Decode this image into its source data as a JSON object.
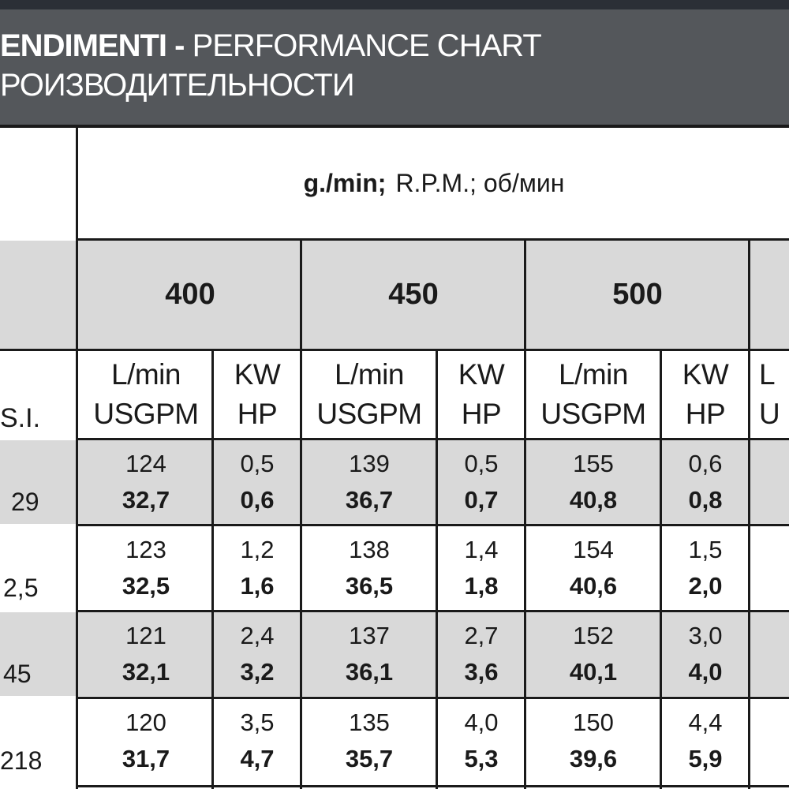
{
  "header": {
    "line1_bold": "ENDIMENTI -",
    "line1_light": "PERFORMANCE CHART",
    "line2": "РОИЗВОДИТЕЛЬНОСТИ"
  },
  "rpm_label": {
    "bold": "g./min;",
    "rest": "R.P.M.; об/мин"
  },
  "speeds": [
    "400",
    "450",
    "500"
  ],
  "units": {
    "flow_top": "L/min",
    "flow_bottom": "USGPM",
    "power_top": "KW",
    "power_bottom": "HP",
    "pressure": "S.I.",
    "cut_flow_top": "L",
    "cut_flow_bottom": "U"
  },
  "rows": [
    {
      "pressure": "29",
      "cells": [
        [
          "124",
          "32,7"
        ],
        [
          "0,5",
          "0,6"
        ],
        [
          "139",
          "36,7"
        ],
        [
          "0,5",
          "0,7"
        ],
        [
          "155",
          "40,8"
        ],
        [
          "0,6",
          "0,8"
        ]
      ]
    },
    {
      "pressure": "2,5",
      "cells": [
        [
          "123",
          "32,5"
        ],
        [
          "1,2",
          "1,6"
        ],
        [
          "138",
          "36,5"
        ],
        [
          "1,4",
          "1,8"
        ],
        [
          "154",
          "40,6"
        ],
        [
          "1,5",
          "2,0"
        ]
      ]
    },
    {
      "pressure": "45",
      "cells": [
        [
          "121",
          "32,1"
        ],
        [
          "2,4",
          "3,2"
        ],
        [
          "137",
          "36,1"
        ],
        [
          "2,7",
          "3,6"
        ],
        [
          "152",
          "40,1"
        ],
        [
          "3,0",
          "4,0"
        ]
      ]
    },
    {
      "pressure": "218",
      "cells": [
        [
          "120",
          "31,7"
        ],
        [
          "3,5",
          "4,7"
        ],
        [
          "135",
          "35,7"
        ],
        [
          "4,0",
          "5,3"
        ],
        [
          "150",
          "39,6"
        ],
        [
          "4,4",
          "5,9"
        ]
      ]
    }
  ],
  "colors": {
    "header_bg": "#54575b",
    "shaded_row": "#d9d9d9",
    "grid": "#1a1a1a"
  }
}
